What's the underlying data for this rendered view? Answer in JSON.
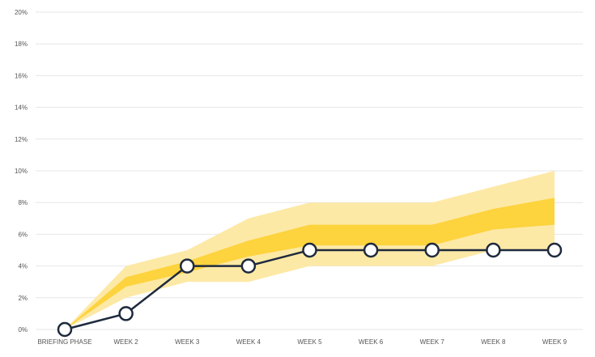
{
  "chart_data": {
    "type": "line",
    "categories": [
      "BRIEFING PHASE",
      "WEEK 2",
      "WEEK 3",
      "WEEK 4",
      "WEEK 5",
      "WEEK 6",
      "WEEK 7",
      "WEEK 8",
      "WEEK 9"
    ],
    "y_ticks": [
      "0%",
      "2%",
      "4%",
      "6%",
      "8%",
      "10%",
      "12%",
      "14%",
      "16%",
      "18%",
      "20%"
    ],
    "ylim": [
      0,
      20
    ],
    "grid": true,
    "series": [
      {
        "values": [
          0,
          1,
          4,
          4,
          5,
          5,
          5,
          5,
          5
        ],
        "color": "#1e2a3d",
        "marker": "circle-hollow"
      }
    ],
    "bands": [
      {
        "label_role": "outer-range",
        "color": "#fde9a6",
        "lower": [
          0,
          2,
          3,
          3,
          4,
          4,
          4,
          5,
          5
        ],
        "upper": [
          0,
          4,
          5,
          7,
          8,
          8,
          8,
          9,
          10
        ]
      },
      {
        "label_role": "inner-range",
        "color": "#fdd33e",
        "lower": [
          0,
          2.7,
          3.6,
          4.6,
          5.3,
          5.3,
          5.3,
          6.3,
          6.6
        ],
        "upper": [
          0,
          3.3,
          4.3,
          5.6,
          6.6,
          6.6,
          6.6,
          7.6,
          8.3
        ]
      }
    ]
  }
}
